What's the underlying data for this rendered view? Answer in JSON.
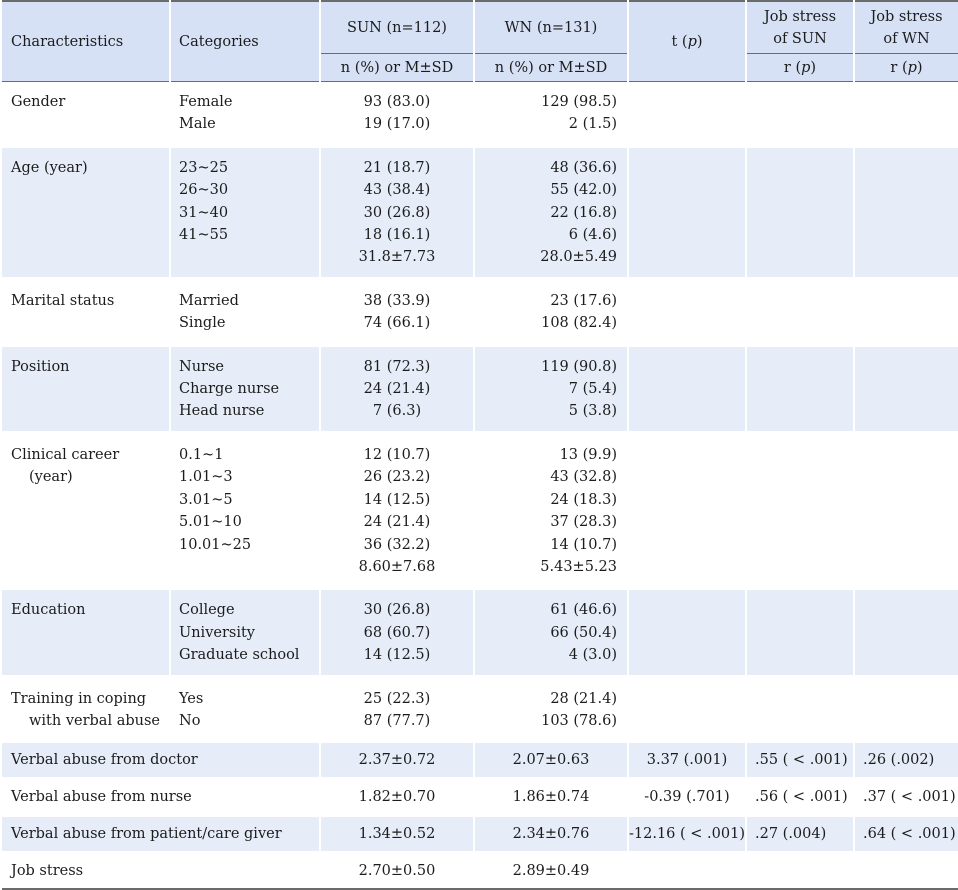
{
  "header": {
    "characteristics": "Characteristics",
    "categories": "Categories",
    "sun": "SUN (n=112)",
    "wn": "WN (n=131)",
    "t_label": "t (",
    "p": "p",
    "close_paren": ")",
    "js_sun_line1": "Job stress",
    "js_sun_line2": "of SUN",
    "js_wn_line1": "Job stress",
    "js_wn_line2": "of WN",
    "sun_sub": "n (%) or M±SD",
    "wn_sub": "n (%) or M±SD",
    "r_label": "r (",
    "r_label2": "r ("
  },
  "groups": [
    {
      "char": [
        "Gender"
      ],
      "cats": [
        "Female",
        "Male"
      ],
      "sun": [
        "93 (83.0)",
        "19 (17.0)"
      ],
      "wn": [
        "129 (98.5)",
        "2 (1.5)"
      ]
    },
    {
      "char": [
        "Age (year)"
      ],
      "cats": [
        "23~25",
        "26~30",
        "31~40",
        "41~55",
        ""
      ],
      "sun": [
        "21 (18.7)",
        "43 (38.4)",
        "30 (26.8)",
        "18 (16.1)",
        "31.8±7.73"
      ],
      "wn": [
        "48 (36.6)",
        "55 (42.0)",
        "22 (16.8)",
        "6 (4.6)",
        "28.0±5.49"
      ]
    },
    {
      "char": [
        "Marital status"
      ],
      "cats": [
        "Married",
        "Single"
      ],
      "sun": [
        "38 (33.9)",
        "74 (66.1)"
      ],
      "wn": [
        "23 (17.6)",
        "108 (82.4)"
      ]
    },
    {
      "char": [
        "Position"
      ],
      "cats": [
        "Nurse",
        "Charge nurse",
        "Head nurse"
      ],
      "sun": [
        "81 (72.3)",
        "24 (21.4)",
        "7 (6.3)"
      ],
      "wn": [
        "119 (90.8)",
        "7 (5.4)",
        "5 (3.8)"
      ]
    },
    {
      "char": [
        "Clinical career",
        "(year)"
      ],
      "cats": [
        "0.1~1",
        "1.01~3",
        "3.01~5",
        "5.01~10",
        "10.01~25",
        ""
      ],
      "sun": [
        "12 (10.7)",
        "26 (23.2)",
        "14 (12.5)",
        "24 (21.4)",
        "36 (32.2)",
        "8.60±7.68"
      ],
      "wn": [
        "13 (9.9)",
        "43 (32.8)",
        "24 (18.3)",
        "37 (28.3)",
        "14 (10.7)",
        "5.43±5.23"
      ]
    },
    {
      "char": [
        "Education"
      ],
      "cats": [
        "College",
        "University",
        "Graduate school"
      ],
      "sun": [
        "30 (26.8)",
        "68 (60.7)",
        "14 (12.5)"
      ],
      "wn": [
        "61 (46.6)",
        "66 (50.4)",
        "4 (3.0)"
      ]
    },
    {
      "char": [
        "Training in coping",
        "with verbal abuse"
      ],
      "cats": [
        "Yes",
        "No"
      ],
      "sun": [
        "25 (22.3)",
        "87 (77.7)"
      ],
      "wn": [
        "28 (21.4)",
        "103 (78.6)"
      ]
    }
  ],
  "singles": [
    {
      "char": "Verbal abuse from doctor",
      "sun": "2.37±0.72",
      "wn": "2.07±0.63",
      "t": "3.37 (.001)",
      "js_sun": ".55 ( < .001)",
      "js_wn": ".26 (.002)"
    },
    {
      "char": "Verbal abuse from nurse",
      "sun": "1.82±0.70",
      "wn": "1.86±0.74",
      "t": "-0.39 (.701)",
      "js_sun": ".56 ( < .001)",
      "js_wn": ".37 ( < .001)"
    },
    {
      "char": "Verbal abuse from patient/care giver",
      "sun": "1.34±0.52",
      "wn": "2.34±0.76",
      "t": "-12.16 ( < .001)",
      "js_sun": ".27 (.004)",
      "js_wn": ".64 ( < .001)"
    },
    {
      "char": "Job stress",
      "sun": "2.70±0.50",
      "wn": "2.89±0.49",
      "t": "",
      "js_sun": "",
      "js_wn": ""
    }
  ]
}
